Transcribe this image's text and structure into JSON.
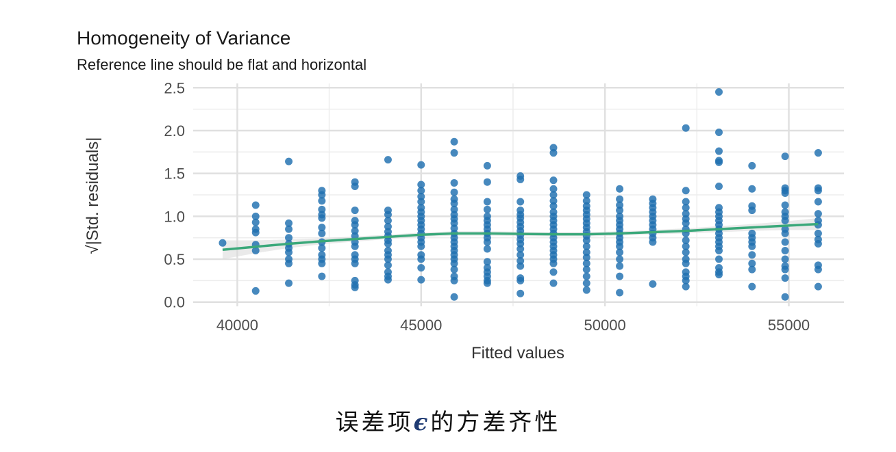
{
  "chart_data": {
    "type": "scatter",
    "title": "Homogeneity of Variance",
    "subtitle": "Reference line should be flat and horizontal",
    "xlabel": "Fitted values",
    "ylabel": "√|Std. residuals|",
    "xlim": [
      38800,
      56500
    ],
    "ylim": [
      -0.05,
      2.55
    ],
    "x_ticks": [
      {
        "value": 40000,
        "label": "40000"
      },
      {
        "value": 45000,
        "label": "45000"
      },
      {
        "value": 50000,
        "label": "50000"
      },
      {
        "value": 55000,
        "label": "55000"
      }
    ],
    "y_ticks": [
      {
        "value": 0.0,
        "label": "0.0"
      },
      {
        "value": 0.5,
        "label": "0.5"
      },
      {
        "value": 1.0,
        "label": "1.0"
      },
      {
        "value": 1.5,
        "label": "1.5"
      },
      {
        "value": 2.0,
        "label": "2.0"
      },
      {
        "value": 2.5,
        "label": "2.5"
      }
    ],
    "grid": true,
    "point_color": "#1f6fb0",
    "line_color": "#3aa87a",
    "band_color": "#d9d9d9",
    "points": [
      {
        "x": 39600,
        "y": [
          0.69
        ]
      },
      {
        "x": 40500,
        "y": [
          1.13,
          1.0,
          0.93,
          0.85,
          0.81,
          0.67,
          0.6,
          0.13
        ]
      },
      {
        "x": 41400,
        "y": [
          1.64,
          0.92,
          0.85,
          0.75,
          0.68,
          0.63,
          0.58,
          0.5,
          0.45,
          0.22
        ]
      },
      {
        "x": 42300,
        "y": [
          1.3,
          1.25,
          1.18,
          1.08,
          1.02,
          0.98,
          0.87,
          0.8,
          0.7,
          0.63,
          0.55,
          0.5,
          0.45,
          0.3
        ]
      },
      {
        "x": 43200,
        "y": [
          1.4,
          1.35,
          1.07,
          0.95,
          0.9,
          0.83,
          0.77,
          0.7,
          0.65,
          0.55,
          0.5,
          0.45,
          0.25,
          0.2,
          0.17
        ]
      },
      {
        "x": 44100,
        "y": [
          1.66,
          1.07,
          1.02,
          0.95,
          0.88,
          0.82,
          0.77,
          0.72,
          0.68,
          0.6,
          0.55,
          0.5,
          0.43,
          0.35,
          0.3,
          0.26
        ]
      },
      {
        "x": 45000,
        "y": [
          1.6,
          1.37,
          1.3,
          1.23,
          1.17,
          1.1,
          1.05,
          1.0,
          0.95,
          0.9,
          0.85,
          0.8,
          0.75,
          0.7,
          0.65,
          0.55,
          0.5,
          0.4,
          0.26
        ]
      },
      {
        "x": 45900,
        "y": [
          1.87,
          1.74,
          1.39,
          1.28,
          1.2,
          1.15,
          1.08,
          1.02,
          0.97,
          0.92,
          0.86,
          0.8,
          0.75,
          0.7,
          0.65,
          0.6,
          0.55,
          0.5,
          0.45,
          0.38,
          0.3,
          0.25,
          0.06
        ]
      },
      {
        "x": 46800,
        "y": [
          1.59,
          1.4,
          1.17,
          1.08,
          1.0,
          0.95,
          0.9,
          0.85,
          0.8,
          0.75,
          0.7,
          0.62,
          0.47,
          0.4,
          0.35,
          0.3,
          0.25,
          0.22
        ]
      },
      {
        "x": 47700,
        "y": [
          1.47,
          1.43,
          1.17,
          1.07,
          1.02,
          0.98,
          0.93,
          0.88,
          0.83,
          0.78,
          0.73,
          0.68,
          0.62,
          0.55,
          0.48,
          0.42,
          0.28,
          0.25,
          0.1
        ]
      },
      {
        "x": 48600,
        "y": [
          1.8,
          1.74,
          1.42,
          1.32,
          1.25,
          1.18,
          1.12,
          1.05,
          1.0,
          0.95,
          0.9,
          0.85,
          0.8,
          0.75,
          0.7,
          0.65,
          0.6,
          0.55,
          0.5,
          0.45,
          0.35,
          0.22
        ]
      },
      {
        "x": 49500,
        "y": [
          1.25,
          1.18,
          1.12,
          1.07,
          1.02,
          0.97,
          0.92,
          0.87,
          0.82,
          0.77,
          0.72,
          0.65,
          0.58,
          0.52,
          0.45,
          0.38,
          0.3,
          0.22,
          0.14
        ]
      },
      {
        "x": 50400,
        "y": [
          1.32,
          1.2,
          1.13,
          1.07,
          1.0,
          0.95,
          0.9,
          0.85,
          0.8,
          0.75,
          0.7,
          0.65,
          0.58,
          0.5,
          0.42,
          0.3,
          0.11
        ]
      },
      {
        "x": 51300,
        "y": [
          1.2,
          1.15,
          1.1,
          1.05,
          1.0,
          0.95,
          0.9,
          0.85,
          0.8,
          0.75,
          0.7,
          0.21
        ]
      },
      {
        "x": 52200,
        "y": [
          2.03,
          1.3,
          1.17,
          1.1,
          1.03,
          0.97,
          0.92,
          0.85,
          0.8,
          0.72,
          0.65,
          0.58,
          0.5,
          0.45,
          0.35,
          0.3,
          0.25,
          0.18
        ]
      },
      {
        "x": 53100,
        "y": [
          2.45,
          1.98,
          1.76,
          1.65,
          1.63,
          1.35,
          1.1,
          1.05,
          1.0,
          0.95,
          0.9,
          0.85,
          0.8,
          0.75,
          0.7,
          0.65,
          0.6,
          0.5,
          0.4,
          0.35,
          0.32
        ]
      },
      {
        "x": 54000,
        "y": [
          1.59,
          1.32,
          1.12,
          1.07,
          0.8,
          0.75,
          0.7,
          0.65,
          0.55,
          0.45,
          0.38,
          0.18
        ]
      },
      {
        "x": 54900,
        "y": [
          1.7,
          1.33,
          1.3,
          1.27,
          1.13,
          1.05,
          1.0,
          0.95,
          0.85,
          0.8,
          0.7,
          0.6,
          0.5,
          0.42,
          0.38,
          0.28,
          0.06
        ]
      },
      {
        "x": 55800,
        "y": [
          1.74,
          1.33,
          1.3,
          1.17,
          1.03,
          0.95,
          0.9,
          0.8,
          0.73,
          0.68,
          0.43,
          0.38,
          0.18
        ]
      }
    ],
    "smooth_line": {
      "x": [
        39600,
        40500,
        41400,
        42300,
        43200,
        44100,
        45000,
        45900,
        46800,
        47700,
        48600,
        49500,
        50400,
        51300,
        52200,
        53100,
        54000,
        54900,
        55800
      ],
      "y": [
        0.61,
        0.645,
        0.68,
        0.71,
        0.735,
        0.76,
        0.785,
        0.8,
        0.8,
        0.795,
        0.79,
        0.79,
        0.8,
        0.815,
        0.83,
        0.85,
        0.87,
        0.89,
        0.91
      ]
    },
    "band": {
      "upper": [
        0.72,
        0.72,
        0.73,
        0.745,
        0.765,
        0.785,
        0.81,
        0.825,
        0.825,
        0.82,
        0.815,
        0.815,
        0.825,
        0.84,
        0.86,
        0.885,
        0.91,
        0.94,
        0.98
      ],
      "lower": [
        0.5,
        0.57,
        0.63,
        0.675,
        0.705,
        0.735,
        0.76,
        0.775,
        0.775,
        0.77,
        0.765,
        0.765,
        0.775,
        0.79,
        0.8,
        0.815,
        0.83,
        0.84,
        0.84
      ]
    }
  },
  "caption": {
    "before": "误差项",
    "symbol": "ϵ",
    "after": "的方差齐性"
  }
}
